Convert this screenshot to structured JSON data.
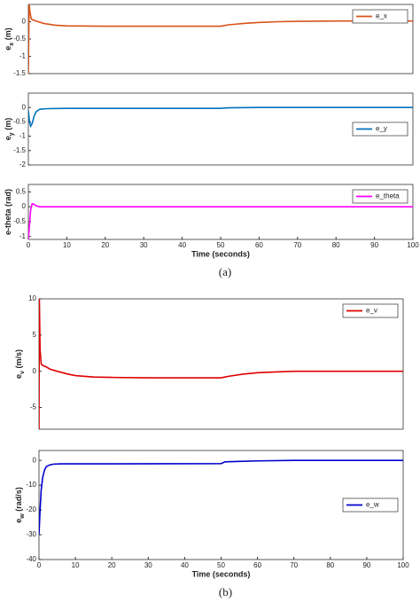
{
  "chart_data": [
    {
      "type": "line",
      "ylabel": [
        "e",
        "x",
        " (m)"
      ],
      "legend": "upper right",
      "ylim": [
        -1.5,
        0.5
      ],
      "yticks": [
        -1.5,
        -1,
        -0.5,
        0
      ],
      "xlim": [
        0,
        100
      ],
      "x": [
        0,
        0.2,
        0.4,
        0.7,
        1,
        2,
        4,
        7,
        10,
        20,
        30,
        40,
        50,
        52,
        56,
        60,
        65,
        70,
        80,
        90,
        100
      ],
      "series": [
        {
          "name": "e_x",
          "color": "#d95319",
          "values": [
            -1.5,
            0.5,
            0.3,
            0.1,
            0.06,
            0.02,
            -0.05,
            -0.1,
            -0.12,
            -0.13,
            -0.13,
            -0.13,
            -0.13,
            -0.09,
            -0.05,
            -0.02,
            0,
            0.01,
            0.02,
            0.02,
            0.02
          ]
        }
      ]
    },
    {
      "type": "line",
      "ylabel": [
        "e",
        "y",
        " (m)"
      ],
      "legend": "center right",
      "ylim": [
        -2,
        0.5
      ],
      "yticks": [
        -2,
        -1.5,
        -1,
        -0.5,
        0
      ],
      "xlim": [
        0,
        100
      ],
      "x": [
        0,
        0.3,
        0.6,
        1,
        1.5,
        2,
        3,
        5,
        10,
        50,
        52,
        60,
        70,
        100
      ],
      "series": [
        {
          "name": "e_y",
          "color": "#0072bd",
          "values": [
            -0.1,
            -0.5,
            -0.65,
            -0.55,
            -0.3,
            -0.15,
            -0.06,
            -0.04,
            -0.03,
            -0.03,
            -0.01,
            0,
            0,
            0
          ]
        }
      ]
    },
    {
      "type": "line",
      "ylabel": [
        "e-theta (rad)"
      ],
      "legend": "upper right",
      "xlabel": "Time (seconds)",
      "caption": "(a)",
      "ylim": [
        -1.1,
        0.75
      ],
      "yticks": [
        -1,
        -0.5,
        0,
        0.5
      ],
      "xlim": [
        0,
        100
      ],
      "xticks": [
        0,
        10,
        20,
        30,
        40,
        50,
        60,
        70,
        80,
        90,
        100
      ],
      "x": [
        0,
        0.3,
        0.6,
        1,
        1.5,
        2,
        3,
        5,
        100
      ],
      "series": [
        {
          "name": "e_theta",
          "color": "#ff00ff",
          "values": [
            -1.1,
            -0.6,
            -0.1,
            0.1,
            0.08,
            0.03,
            0,
            0,
            0
          ]
        }
      ]
    },
    {
      "type": "line",
      "ylabel": [
        "e",
        "v",
        " (m/s)"
      ],
      "legend": "upper right",
      "ylim": [
        -8,
        10
      ],
      "yticks": [
        -5,
        0,
        5,
        10
      ],
      "xlim": [
        0,
        100
      ],
      "x": [
        0,
        0.1,
        0.3,
        0.6,
        1,
        2,
        3,
        5,
        8,
        10,
        15,
        20,
        30,
        40,
        50,
        52,
        56,
        60,
        65,
        70,
        80,
        90,
        100
      ],
      "series": [
        {
          "name": "e_v",
          "color": "#e00000",
          "values": [
            -8,
            10,
            3,
            1,
            0.8,
            0.6,
            0.3,
            0,
            -0.4,
            -0.6,
            -0.8,
            -0.85,
            -0.9,
            -0.9,
            -0.9,
            -0.7,
            -0.4,
            -0.2,
            -0.1,
            0,
            0,
            0,
            0
          ]
        }
      ]
    },
    {
      "type": "line",
      "ylabel": [
        "e",
        "w",
        " (rad/s)"
      ],
      "legend": "center right",
      "xlabel": "Time (seconds)",
      "caption": "(b)",
      "ylim": [
        -40,
        4
      ],
      "yticks": [
        -40,
        -30,
        -20,
        -10,
        0
      ],
      "xlim": [
        0,
        100
      ],
      "xticks": [
        0,
        10,
        20,
        30,
        40,
        50,
        60,
        70,
        80,
        90,
        100
      ],
      "x": [
        0,
        0.3,
        0.6,
        1,
        1.5,
        2,
        3,
        4,
        6,
        10,
        50,
        51,
        55,
        60,
        70,
        80,
        100
      ],
      "series": [
        {
          "name": "e_w",
          "color": "#0000cc",
          "values": [
            -30,
            -20,
            -12,
            -7,
            -4,
            -2.5,
            -1.8,
            -1.5,
            -1.4,
            -1.4,
            -1.3,
            -0.6,
            -0.4,
            -0.2,
            0,
            0,
            0
          ]
        }
      ]
    }
  ]
}
